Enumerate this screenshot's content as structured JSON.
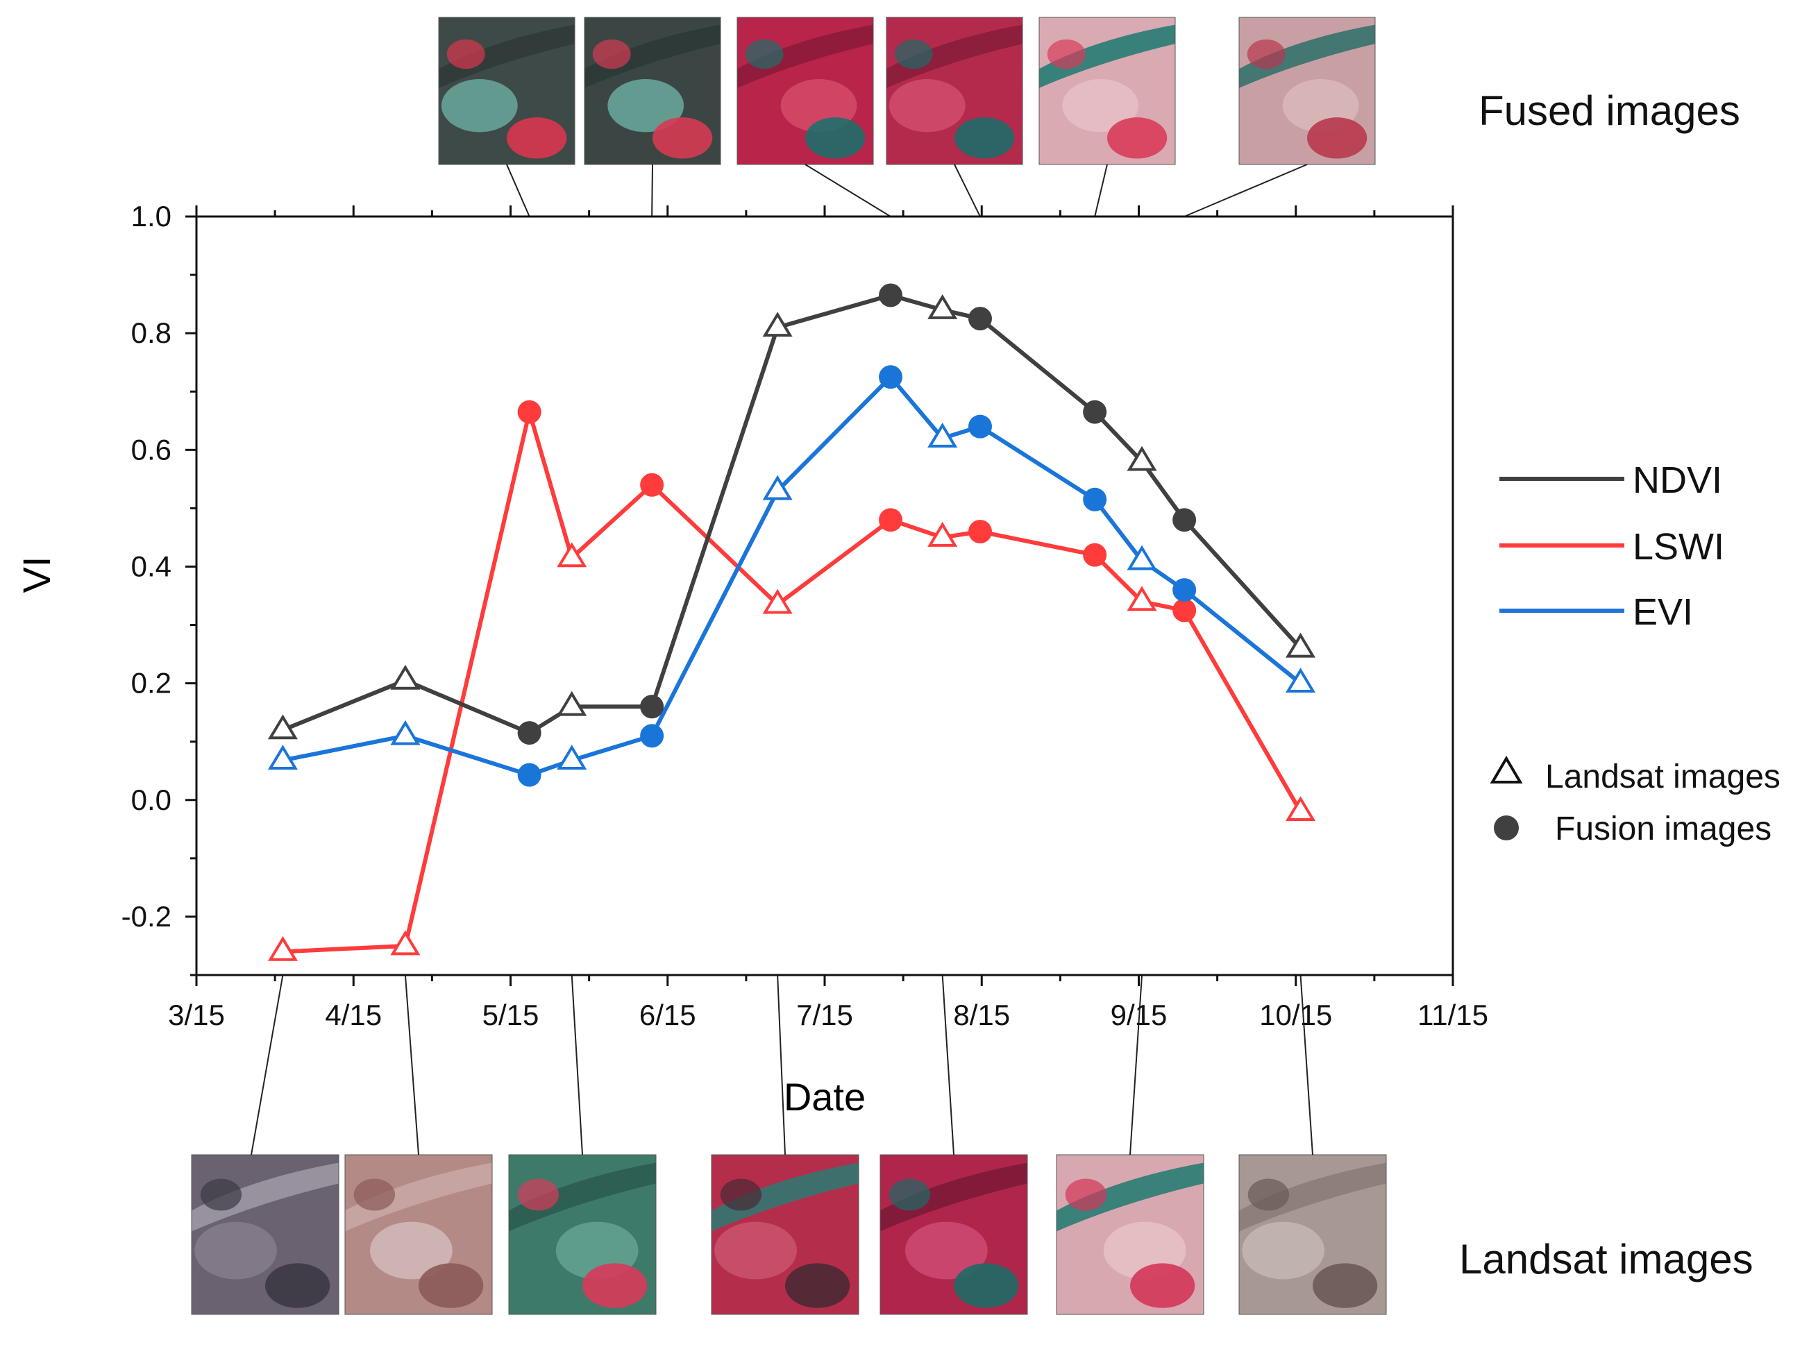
{
  "chart_data": {
    "type": "line",
    "title": "",
    "xlabel": "Date",
    "ylabel": "VI",
    "x_ticks": [
      "3/15",
      "4/15",
      "5/15",
      "6/15",
      "7/15",
      "8/15",
      "9/15",
      "10/15",
      "11/15"
    ],
    "y_ticks": [
      "-0.2",
      "0.0",
      "0.2",
      "0.4",
      "0.6",
      "0.8",
      "1.0"
    ],
    "xlim_months_from_mar15": [
      0,
      8
    ],
    "ylim": [
      -0.3,
      1.0
    ],
    "series": [
      {
        "name": "NDVI",
        "color": "#404040",
        "points": [
          {
            "x": 0.55,
            "y": 0.12,
            "source": "landsat"
          },
          {
            "x": 1.33,
            "y": 0.205,
            "source": "landsat"
          },
          {
            "x": 2.12,
            "y": 0.115,
            "source": "fusion"
          },
          {
            "x": 2.39,
            "y": 0.16,
            "source": "landsat"
          },
          {
            "x": 2.9,
            "y": 0.16,
            "source": "fusion"
          },
          {
            "x": 3.7,
            "y": 0.81,
            "source": "landsat"
          },
          {
            "x": 4.42,
            "y": 0.865,
            "source": "fusion"
          },
          {
            "x": 4.75,
            "y": 0.84,
            "source": "landsat"
          },
          {
            "x": 4.99,
            "y": 0.825,
            "source": "fusion"
          },
          {
            "x": 5.72,
            "y": 0.665,
            "source": "fusion"
          },
          {
            "x": 6.02,
            "y": 0.58,
            "source": "landsat"
          },
          {
            "x": 6.29,
            "y": 0.48,
            "source": "fusion"
          },
          {
            "x": 7.03,
            "y": 0.26,
            "source": "landsat"
          }
        ]
      },
      {
        "name": "LSWI",
        "color": "#ff3b3b",
        "points": [
          {
            "x": 0.55,
            "y": -0.26,
            "source": "landsat"
          },
          {
            "x": 1.33,
            "y": -0.25,
            "source": "landsat"
          },
          {
            "x": 2.12,
            "y": 0.665,
            "source": "fusion"
          },
          {
            "x": 2.39,
            "y": 0.415,
            "source": "landsat"
          },
          {
            "x": 2.9,
            "y": 0.54,
            "source": "fusion"
          },
          {
            "x": 3.7,
            "y": 0.335,
            "source": "landsat"
          },
          {
            "x": 4.42,
            "y": 0.48,
            "source": "fusion"
          },
          {
            "x": 4.75,
            "y": 0.45,
            "source": "landsat"
          },
          {
            "x": 4.99,
            "y": 0.46,
            "source": "fusion"
          },
          {
            "x": 5.72,
            "y": 0.42,
            "source": "fusion"
          },
          {
            "x": 6.02,
            "y": 0.34,
            "source": "landsat"
          },
          {
            "x": 6.29,
            "y": 0.325,
            "source": "fusion"
          },
          {
            "x": 7.03,
            "y": -0.02,
            "source": "landsat"
          }
        ]
      },
      {
        "name": "EVI",
        "color": "#1a75d9",
        "points": [
          {
            "x": 0.55,
            "y": 0.068,
            "source": "landsat"
          },
          {
            "x": 1.33,
            "y": 0.11,
            "source": "landsat"
          },
          {
            "x": 2.12,
            "y": 0.043,
            "source": "fusion"
          },
          {
            "x": 2.39,
            "y": 0.068,
            "source": "landsat"
          },
          {
            "x": 2.9,
            "y": 0.11,
            "source": "fusion"
          },
          {
            "x": 3.7,
            "y": 0.53,
            "source": "landsat"
          },
          {
            "x": 4.42,
            "y": 0.725,
            "source": "fusion"
          },
          {
            "x": 4.75,
            "y": 0.62,
            "source": "landsat"
          },
          {
            "x": 4.99,
            "y": 0.64,
            "source": "fusion"
          },
          {
            "x": 5.72,
            "y": 0.515,
            "source": "fusion"
          },
          {
            "x": 6.02,
            "y": 0.41,
            "source": "landsat"
          },
          {
            "x": 6.29,
            "y": 0.36,
            "source": "fusion"
          },
          {
            "x": 7.03,
            "y": 0.2,
            "source": "landsat"
          }
        ]
      }
    ],
    "legend_series": [
      "NDVI",
      "LSWI",
      "EVI"
    ],
    "legend_markers": {
      "landsat": "Landsat images",
      "fusion": "Fusion images"
    },
    "legend_position": "right",
    "labels": {
      "fused_images": "Fused images",
      "landsat_images": "Landsat images"
    },
    "fused_thumbnails": [
      {
        "date_x": 2.12,
        "palette": [
          "#3e4a48",
          "#6fb5a8",
          "#d8364e",
          "#2f3a38"
        ]
      },
      {
        "date_x": 2.9,
        "palette": [
          "#3b4644",
          "#72b8ab",
          "#d63a52",
          "#2d3836"
        ]
      },
      {
        "date_x": 4.42,
        "palette": [
          "#b8244a",
          "#d8506e",
          "#1f6e6a",
          "#8a1a38"
        ]
      },
      {
        "date_x": 4.99,
        "palette": [
          "#b42a4c",
          "#d45272",
          "#1e6a68",
          "#861c3a"
        ]
      },
      {
        "date_x": 5.72,
        "palette": [
          "#d9aab2",
          "#e8c2c8",
          "#d83c5a",
          "#1b7a70"
        ]
      },
      {
        "date_x": 6.29,
        "palette": [
          "#c8a0a4",
          "#dcbcbe",
          "#b8384e",
          "#2d6e6a"
        ]
      }
    ],
    "landsat_thumbnails": [
      {
        "date_x": 0.55,
        "palette": [
          "#6a6270",
          "#8a8090",
          "#3c3a44",
          "#a09aa6"
        ]
      },
      {
        "date_x": 1.33,
        "palette": [
          "#b48a86",
          "#d6c0c0",
          "#8a5a58",
          "#c8a8a6"
        ]
      },
      {
        "date_x": 2.39,
        "palette": [
          "#3e7a6a",
          "#6aa898",
          "#d83a5a",
          "#2a5a4e"
        ]
      },
      {
        "date_x": 3.7,
        "palette": [
          "#b42e4c",
          "#cc5a72",
          "#4a2a34",
          "#2a7a72"
        ]
      },
      {
        "date_x": 4.75,
        "palette": [
          "#b0264a",
          "#d2507a",
          "#1e6a66",
          "#7a1a36"
        ]
      },
      {
        "date_x": 6.02,
        "palette": [
          "#d8a8b0",
          "#e8c6ca",
          "#d4365a",
          "#1e7a70"
        ]
      },
      {
        "date_x": 7.03,
        "palette": [
          "#a89894",
          "#c8bcb8",
          "#6a5a56",
          "#8a7a78"
        ]
      }
    ]
  }
}
